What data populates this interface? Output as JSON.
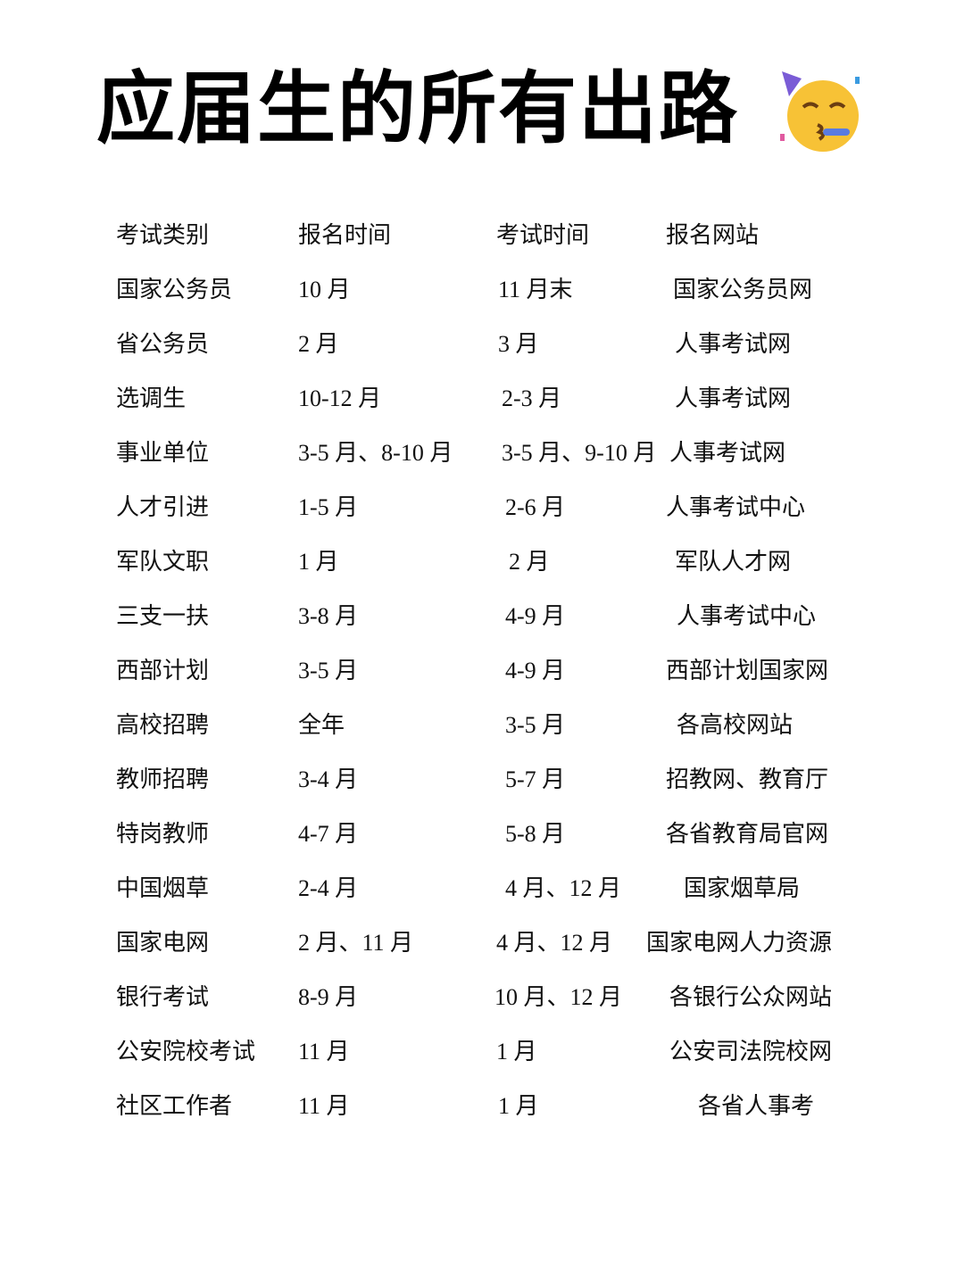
{
  "title": "应届生的所有出路",
  "title_icon": "partying-face-icon",
  "table": {
    "headers": [
      "考试类别",
      "报名时间",
      "考试时间",
      "报名网站"
    ],
    "rows": [
      [
        "国家公务员",
        "10 月",
        "11 月末",
        "国家公务员网"
      ],
      [
        "省公务员",
        "2 月",
        "3 月",
        "人事考试网"
      ],
      [
        "选调生",
        "10-12 月",
        "2-3 月",
        "人事考试网"
      ],
      [
        "事业单位",
        "3-5 月、8-10 月",
        "3-5 月、9-10 月",
        "人事考试网"
      ],
      [
        "人才引进",
        "1-5 月",
        "2-6 月",
        "人事考试中心"
      ],
      [
        "军队文职",
        "1 月",
        "2 月",
        "军队人才网"
      ],
      [
        "三支一扶",
        "3-8 月",
        "4-9 月",
        "人事考试中心"
      ],
      [
        "西部计划",
        "3-5 月",
        "4-9 月",
        "西部计划国家网"
      ],
      [
        "高校招聘",
        "全年",
        "3-5 月",
        "各高校网站"
      ],
      [
        "教师招聘",
        "3-4 月",
        "5-7 月",
        "招教网、教育厅"
      ],
      [
        "特岗教师",
        "4-7 月",
        "5-8 月",
        "各省教育局官网"
      ],
      [
        "中国烟草",
        "2-4 月",
        "4 月、12 月",
        "国家烟草局"
      ],
      [
        "国家电网",
        "2 月、11 月",
        "4 月、12 月",
        "国家电网人力资源"
      ],
      [
        "银行考试",
        "8-9 月",
        "10 月、12 月",
        "各银行公众网站"
      ],
      [
        "公安院校考试",
        "11 月",
        "1 月",
        "公安司法院校网"
      ],
      [
        "社区工作者",
        "11 月",
        "1 月",
        "各省人事考"
      ]
    ]
  }
}
